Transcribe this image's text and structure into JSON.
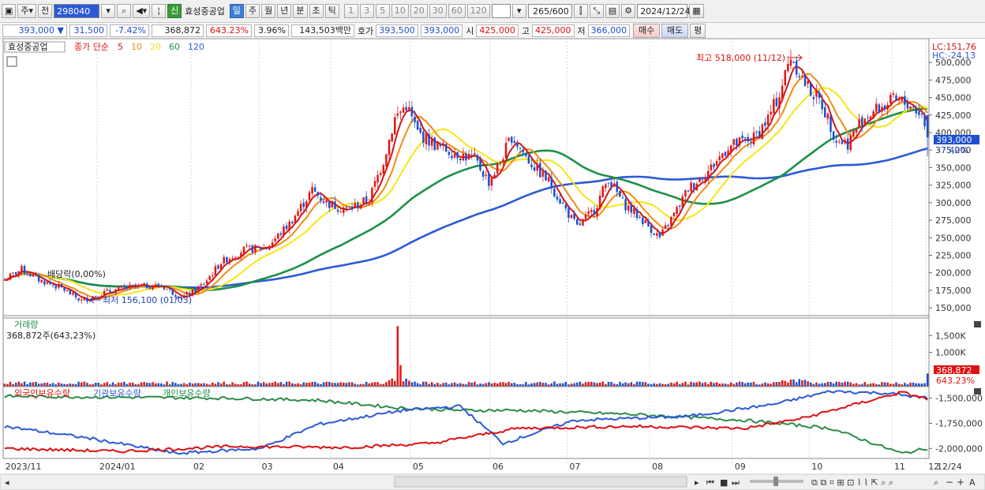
{
  "toolbar": {
    "mode1": "주",
    "mode2": "전",
    "code": "298040",
    "badge": "신",
    "stock_name": "효성중공업",
    "periods": [
      "일",
      "주",
      "월",
      "년",
      "분",
      "초",
      "틱"
    ],
    "intervals": [
      "1",
      "3",
      "5",
      "10",
      "20",
      "30",
      "60",
      "120"
    ],
    "count_value": "265",
    "count_total": "/600",
    "date": "2024/12/24"
  },
  "quote": {
    "price": "393,000",
    "change": "31,500",
    "change_pct": "-7.42%",
    "volume": "368,872",
    "volume_ratio": "643.23%",
    "turnover_pct": "3.96%",
    "amount": "143,503백만",
    "bid_label": "호가",
    "bid": "393,500",
    "ask": "393,000",
    "open_label": "시",
    "open": "425,000",
    "high_label": "고",
    "high": "425,000",
    "low_label": "저",
    "low": "366,000",
    "buy_label": "매수",
    "sell_label": "매도",
    "eval_label": "평"
  },
  "price_panel": {
    "title": "효성중공업",
    "legend_label": "종가 단순",
    "ma_labels": [
      "5",
      "10",
      "20",
      "60",
      "120"
    ],
    "ma_colors": [
      "#d41414",
      "#f08c14",
      "#f5e614",
      "#1e9046",
      "#2b5ad6"
    ],
    "lc": "LC:151,76",
    "hc": "HC:-24,13",
    "high_annotation": "최고 518,000 (11/12)",
    "low_annotation": "최저 156,100 (01/03)",
    "dividend_annotation": "배당락(0,00%)",
    "current_price": "393,000",
    "current_pct": "-7.42%"
  },
  "volume_panel": {
    "title": "거래량",
    "value": "368,872주(643,23%)",
    "current": "368,872",
    "current_pct": "643.23%"
  },
  "holding_panel": {
    "labels": [
      "외국인보유수량",
      "기관보유수량",
      "개인보유수량"
    ]
  },
  "x_labels": [
    "2023/11",
    "2024/01",
    "02",
    "03",
    "04",
    "05",
    "06",
    "07",
    "08",
    "09",
    "10",
    "11",
    "12",
    "12/24"
  ],
  "chart_data": [
    {
      "type": "candlestick",
      "ylim": [
        140000,
        525000
      ],
      "y_ticks": [
        150000,
        175000,
        200000,
        225000,
        250000,
        275000,
        300000,
        325000,
        350000,
        375000,
        400000,
        425000,
        450000,
        475000,
        500000
      ],
      "y_tick_labels": [
        "150,000",
        "175,000",
        "200,000",
        "225,000",
        "250,000",
        "275,000",
        "300,000",
        "325,000",
        "350,000",
        "375,000",
        "400,000",
        "425,000",
        "450,000",
        "475,000",
        "500,000"
      ],
      "close_anchors": [
        [
          0,
          190000
        ],
        [
          6,
          205000
        ],
        [
          12,
          190000
        ],
        [
          20,
          178000
        ],
        [
          27,
          160000
        ],
        [
          35,
          172000
        ],
        [
          45,
          180000
        ],
        [
          55,
          182000
        ],
        [
          62,
          165000
        ],
        [
          66,
          172000
        ],
        [
          70,
          185000
        ],
        [
          76,
          215000
        ],
        [
          84,
          233000
        ],
        [
          92,
          236000
        ],
        [
          100,
          270000
        ],
        [
          108,
          318000
        ],
        [
          113,
          300000
        ],
        [
          120,
          290000
        ],
        [
          128,
          305000
        ],
        [
          133,
          360000
        ],
        [
          137,
          420000
        ],
        [
          141,
          440000
        ],
        [
          145,
          400000
        ],
        [
          152,
          380000
        ],
        [
          159,
          370000
        ],
        [
          165,
          362000
        ],
        [
          170,
          330000
        ],
        [
          173,
          350000
        ],
        [
          178,
          395000
        ],
        [
          184,
          360000
        ],
        [
          191,
          330000
        ],
        [
          197,
          290000
        ],
        [
          201,
          265000
        ],
        [
          207,
          290000
        ],
        [
          212,
          335000
        ],
        [
          217,
          300000
        ],
        [
          224,
          275000
        ],
        [
          230,
          250000
        ],
        [
          236,
          290000
        ],
        [
          240,
          320000
        ],
        [
          247,
          345000
        ],
        [
          254,
          380000
        ],
        [
          258,
          385000
        ],
        [
          263,
          392000
        ],
        [
          268,
          420000
        ],
        [
          272,
          455000
        ],
        [
          276,
          510000
        ],
        [
          281,
          470000
        ],
        [
          287,
          440000
        ],
        [
          292,
          390000
        ],
        [
          296,
          385000
        ],
        [
          301,
          420000
        ],
        [
          307,
          435000
        ],
        [
          312,
          445000
        ],
        [
          318,
          440000
        ],
        [
          322,
          425000
        ],
        [
          324,
          393000
        ]
      ],
      "high": 518000,
      "low": 156100,
      "last_close": 393000
    },
    {
      "type": "bar",
      "series": "volume",
      "y_tick_labels": [
        "1,500K",
        "1,000K"
      ],
      "y_ticks": [
        1500000,
        1000000
      ],
      "ylim": [
        0,
        2000000
      ],
      "last": 368872
    },
    {
      "type": "line",
      "y_ticks": [
        -1500000,
        -1750000,
        -2000000
      ],
      "y_tick_labels": [
        "-1,500,000",
        "-1,750,000",
        "-2,000,000"
      ]
    }
  ]
}
